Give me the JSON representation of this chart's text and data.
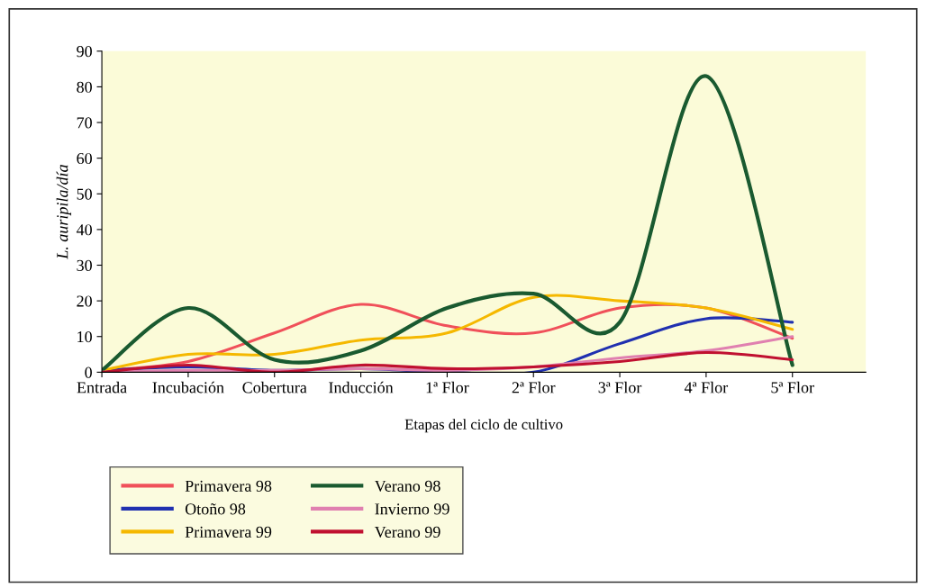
{
  "chart_data": {
    "type": "line",
    "xlabel": "Etapas del ciclo de cultivo",
    "ylabel": "L. auripila/día",
    "categories": [
      "Entrada",
      "Incubación",
      "Cobertura",
      "Inducción",
      "1ª Flor",
      "2ª Flor",
      "3ª Flor",
      "4ª Flor",
      "5ª Flor"
    ],
    "series": [
      {
        "name": "Primavera 98",
        "color": "#f0505a",
        "values": [
          0.5,
          3,
          11,
          19,
          13,
          11,
          18,
          18,
          9.5
        ]
      },
      {
        "name": "Otoño 98",
        "color": "#2030b0",
        "values": [
          0.5,
          1.5,
          0.5,
          1,
          0,
          0,
          8,
          15,
          14
        ]
      },
      {
        "name": "Primavera 99",
        "color": "#f5b800",
        "values": [
          0.5,
          5,
          5,
          9,
          11,
          21,
          20,
          18,
          12
        ]
      },
      {
        "name": "Verano 98",
        "color": "#1a5a30",
        "values": [
          0.5,
          18,
          3.5,
          6,
          18,
          22,
          14,
          83,
          2
        ]
      },
      {
        "name": "Invierno 99",
        "color": "#e080b0",
        "values": [
          0,
          0.5,
          0.5,
          1,
          0.5,
          1.5,
          4,
          6,
          10
        ]
      },
      {
        "name": "Verano 99",
        "color": "#c01030",
        "values": [
          0,
          2,
          0,
          2,
          1,
          1.5,
          3,
          5.5,
          3.5
        ]
      }
    ],
    "ylim": [
      0,
      90
    ],
    "yticks": [
      0,
      10,
      20,
      30,
      40,
      50,
      60,
      70,
      80,
      90
    ],
    "grid": false,
    "legend": "bottom",
    "marker": "none",
    "line_style": "solid"
  }
}
